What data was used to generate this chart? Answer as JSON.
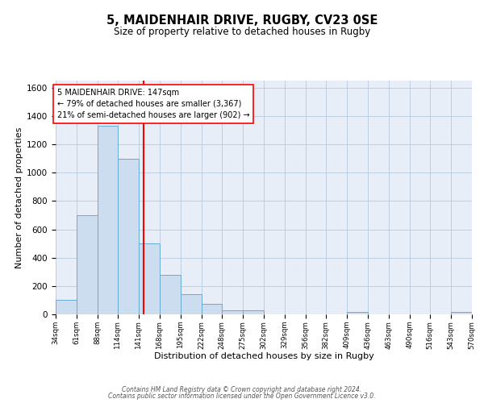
{
  "title": "5, MAIDENHAIR DRIVE, RUGBY, CV23 0SE",
  "subtitle": "Size of property relative to detached houses in Rugby",
  "xlabel": "Distribution of detached houses by size in Rugby",
  "ylabel": "Number of detached properties",
  "bar_color": "#ccddf0",
  "bar_edge_color": "#6aaad4",
  "background_color": "#e8eef8",
  "grid_color": "#b8c8dc",
  "vline_x": 147,
  "vline_color": "red",
  "annotation_line1": "5 MAIDENHAIR DRIVE: 147sqm",
  "annotation_line2": "← 79% of detached houses are smaller (3,367)",
  "annotation_line3": "21% of semi-detached houses are larger (902) →",
  "annotation_box_color": "white",
  "annotation_box_edge": "red",
  "ylim": [
    0,
    1650
  ],
  "yticks": [
    0,
    200,
    400,
    600,
    800,
    1000,
    1200,
    1400,
    1600
  ],
  "bin_edges": [
    34,
    61,
    88,
    114,
    141,
    168,
    195,
    222,
    248,
    275,
    302,
    329,
    356,
    382,
    409,
    436,
    463,
    490,
    516,
    543,
    570
  ],
  "bar_heights": [
    100,
    700,
    1330,
    1100,
    500,
    280,
    140,
    75,
    30,
    30,
    0,
    0,
    0,
    0,
    15,
    0,
    0,
    0,
    0,
    15
  ],
  "footer_line1": "Contains HM Land Registry data © Crown copyright and database right 2024.",
  "footer_line2": "Contains public sector information licensed under the Open Government Licence v3.0."
}
